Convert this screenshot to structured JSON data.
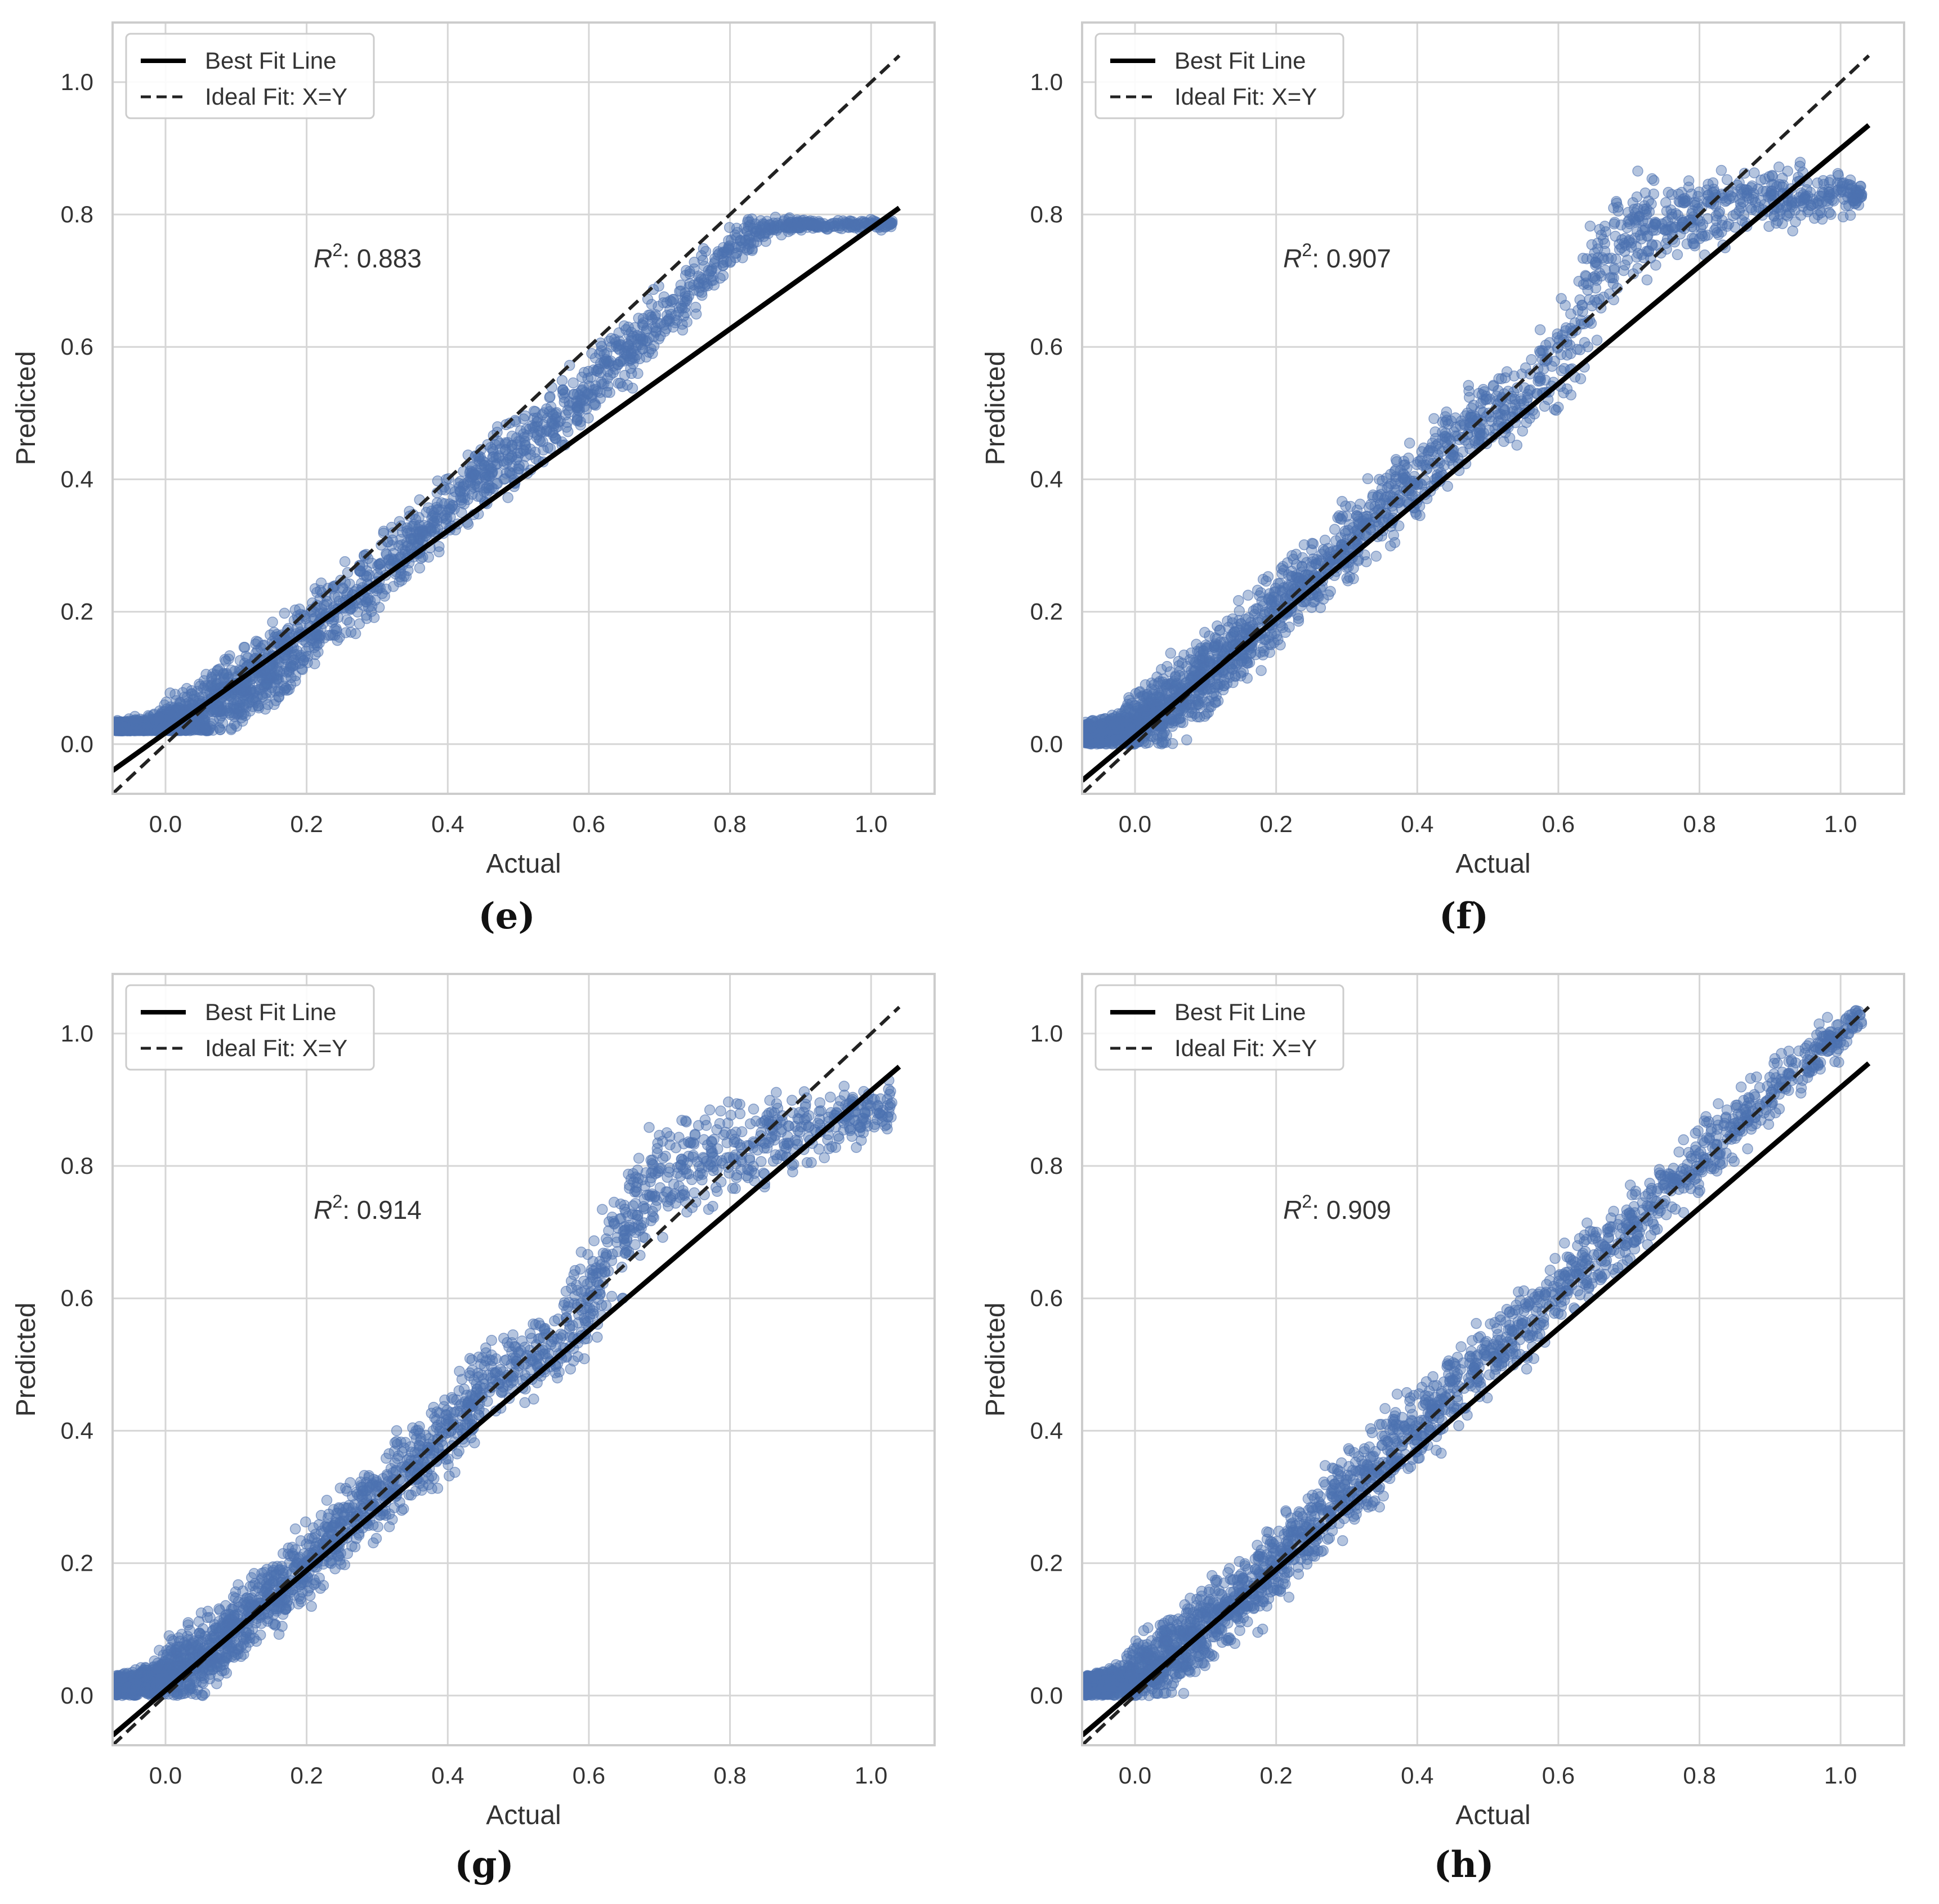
{
  "figure": {
    "panels": [
      {
        "caption": "(e)"
      },
      {
        "caption": "(f)"
      },
      {
        "caption": "(g)"
      },
      {
        "caption": "(h)"
      }
    ]
  },
  "colors": {
    "scatter": "#4c72b0",
    "best_fit": "#000000",
    "ideal_fit": "#222222",
    "grid": "#d6d6d6",
    "frame": "#cccccc",
    "text": "#333333"
  },
  "chart_data": [
    {
      "type": "scatter",
      "panel": "e",
      "xlabel": "Actual",
      "ylabel": "Predicted",
      "xlim": [
        -0.075,
        1.09
      ],
      "ylim": [
        -0.075,
        1.09
      ],
      "xticks": [
        "0.0",
        "0.2",
        "0.4",
        "0.6",
        "0.8",
        "1.0"
      ],
      "yticks": [
        "0.0",
        "0.2",
        "0.4",
        "0.6",
        "0.8",
        "1.0"
      ],
      "legend": {
        "best_fit_label": "Best Fit Line",
        "ideal_fit_label": "Ideal Fit: X=Y",
        "position": "top-left"
      },
      "annotation": {
        "prefix": "R",
        "superscript": "2",
        "value": ": 0.883",
        "x": 0.21,
        "y": 0.72
      },
      "best_fit": {
        "x": [
          -0.075,
          1.04
        ],
        "y": [
          -0.04,
          0.81
        ]
      },
      "ideal_fit": {
        "x": [
          -0.075,
          1.04
        ],
        "y": [
          -0.075,
          1.04
        ]
      },
      "scatter_band": {
        "x": [
          -0.07,
          -0.02,
          0.0,
          0.05,
          0.1,
          0.15,
          0.2,
          0.25,
          0.3,
          0.35,
          0.4,
          0.45,
          0.5,
          0.55,
          0.6,
          0.65,
          0.7,
          0.75,
          0.8,
          0.85,
          0.9,
          0.95,
          1.0,
          1.03
        ],
        "center": [
          0.025,
          0.025,
          0.03,
          0.045,
          0.08,
          0.115,
          0.16,
          0.21,
          0.26,
          0.305,
          0.355,
          0.405,
          0.445,
          0.49,
          0.54,
          0.59,
          0.64,
          0.695,
          0.745,
          0.78,
          0.785,
          0.785,
          0.785,
          0.785
        ],
        "spread": [
          0.005,
          0.01,
          0.02,
          0.03,
          0.035,
          0.035,
          0.035,
          0.035,
          0.035,
          0.03,
          0.03,
          0.03,
          0.03,
          0.03,
          0.03,
          0.03,
          0.03,
          0.025,
          0.02,
          0.01,
          0.005,
          0.004,
          0.004,
          0.004
        ],
        "floor": 0.02
      }
    },
    {
      "type": "scatter",
      "panel": "f",
      "xlabel": "Actual",
      "ylabel": "Predicted",
      "xlim": [
        -0.075,
        1.09
      ],
      "ylim": [
        -0.075,
        1.09
      ],
      "xticks": [
        "0.0",
        "0.2",
        "0.4",
        "0.6",
        "0.8",
        "1.0"
      ],
      "yticks": [
        "0.0",
        "0.2",
        "0.4",
        "0.6",
        "0.8",
        "1.0"
      ],
      "legend": {
        "best_fit_label": "Best Fit Line",
        "ideal_fit_label": "Ideal Fit: X=Y",
        "position": "top-left"
      },
      "annotation": {
        "prefix": "R",
        "superscript": "2",
        "value": ": 0.907",
        "x": 0.21,
        "y": 0.72
      },
      "best_fit": {
        "x": [
          -0.075,
          1.04
        ],
        "y": [
          -0.055,
          0.935
        ]
      },
      "ideal_fit": {
        "x": [
          -0.075,
          1.04
        ],
        "y": [
          -0.075,
          1.04
        ]
      },
      "scatter_band": {
        "x": [
          -0.07,
          -0.02,
          0.0,
          0.05,
          0.1,
          0.15,
          0.2,
          0.25,
          0.3,
          0.35,
          0.4,
          0.45,
          0.5,
          0.55,
          0.6,
          0.65,
          0.7,
          0.75,
          0.8,
          0.85,
          0.9,
          0.95,
          1.0,
          1.03
        ],
        "center": [
          0.015,
          0.02,
          0.03,
          0.06,
          0.1,
          0.15,
          0.2,
          0.25,
          0.3,
          0.35,
          0.405,
          0.46,
          0.5,
          0.515,
          0.57,
          0.7,
          0.78,
          0.79,
          0.8,
          0.81,
          0.82,
          0.83,
          0.83,
          0.83
        ],
        "spread": [
          0.008,
          0.015,
          0.025,
          0.035,
          0.035,
          0.035,
          0.035,
          0.035,
          0.035,
          0.035,
          0.035,
          0.035,
          0.03,
          0.03,
          0.05,
          0.05,
          0.04,
          0.035,
          0.035,
          0.03,
          0.03,
          0.025,
          0.02,
          0.01
        ],
        "floor": 0.0
      }
    },
    {
      "type": "scatter",
      "panel": "g",
      "xlabel": "Actual",
      "ylabel": "Predicted",
      "xlim": [
        -0.075,
        1.09
      ],
      "ylim": [
        -0.075,
        1.09
      ],
      "xticks": [
        "0.0",
        "0.2",
        "0.4",
        "0.6",
        "0.8",
        "1.0"
      ],
      "yticks": [
        "0.0",
        "0.2",
        "0.4",
        "0.6",
        "0.8",
        "1.0"
      ],
      "legend": {
        "best_fit_label": "Best Fit Line",
        "ideal_fit_label": "Ideal Fit: X=Y",
        "position": "top-left"
      },
      "annotation": {
        "prefix": "R",
        "superscript": "2",
        "value": ": 0.914",
        "x": 0.21,
        "y": 0.72
      },
      "best_fit": {
        "x": [
          -0.075,
          1.04
        ],
        "y": [
          -0.06,
          0.95
        ]
      },
      "ideal_fit": {
        "x": [
          -0.075,
          1.04
        ],
        "y": [
          -0.075,
          1.04
        ]
      },
      "scatter_band": {
        "x": [
          -0.07,
          -0.02,
          0.0,
          0.05,
          0.1,
          0.15,
          0.2,
          0.25,
          0.3,
          0.35,
          0.4,
          0.45,
          0.5,
          0.55,
          0.6,
          0.65,
          0.7,
          0.75,
          0.8,
          0.85,
          0.9,
          0.95,
          1.0,
          1.03
        ],
        "center": [
          0.015,
          0.02,
          0.03,
          0.06,
          0.1,
          0.15,
          0.2,
          0.25,
          0.3,
          0.35,
          0.4,
          0.47,
          0.5,
          0.52,
          0.6,
          0.7,
          0.79,
          0.8,
          0.82,
          0.84,
          0.86,
          0.87,
          0.88,
          0.89
        ],
        "spread": [
          0.008,
          0.015,
          0.025,
          0.035,
          0.035,
          0.035,
          0.035,
          0.035,
          0.035,
          0.035,
          0.035,
          0.035,
          0.03,
          0.035,
          0.05,
          0.05,
          0.045,
          0.04,
          0.04,
          0.035,
          0.035,
          0.03,
          0.03,
          0.02
        ],
        "floor": 0.0
      }
    },
    {
      "type": "scatter",
      "panel": "h",
      "xlabel": "Actual",
      "ylabel": "Predicted",
      "xlim": [
        -0.075,
        1.09
      ],
      "ylim": [
        -0.075,
        1.09
      ],
      "xticks": [
        "0.0",
        "0.2",
        "0.4",
        "0.6",
        "0.8",
        "1.0"
      ],
      "yticks": [
        "0.0",
        "0.2",
        "0.4",
        "0.6",
        "0.8",
        "1.0"
      ],
      "legend": {
        "best_fit_label": "Best Fit Line",
        "ideal_fit_label": "Ideal Fit: X=Y",
        "position": "top-left"
      },
      "annotation": {
        "prefix": "R",
        "superscript": "2",
        "value": ": 0.909",
        "x": 0.21,
        "y": 0.72
      },
      "best_fit": {
        "x": [
          -0.075,
          1.04
        ],
        "y": [
          -0.06,
          0.955
        ]
      },
      "ideal_fit": {
        "x": [
          -0.075,
          1.04
        ],
        "y": [
          -0.075,
          1.04
        ]
      },
      "scatter_band": {
        "x": [
          -0.07,
          -0.02,
          0.0,
          0.05,
          0.1,
          0.15,
          0.2,
          0.25,
          0.3,
          0.35,
          0.4,
          0.45,
          0.5,
          0.55,
          0.6,
          0.65,
          0.7,
          0.75,
          0.8,
          0.85,
          0.9,
          0.95,
          1.0,
          1.03
        ],
        "center": [
          0.015,
          0.02,
          0.03,
          0.06,
          0.1,
          0.15,
          0.2,
          0.255,
          0.31,
          0.36,
          0.41,
          0.46,
          0.51,
          0.56,
          0.61,
          0.66,
          0.71,
          0.76,
          0.81,
          0.86,
          0.91,
          0.955,
          1.0,
          1.02
        ],
        "spread": [
          0.008,
          0.015,
          0.025,
          0.035,
          0.035,
          0.035,
          0.035,
          0.035,
          0.035,
          0.035,
          0.035,
          0.035,
          0.035,
          0.035,
          0.035,
          0.035,
          0.035,
          0.03,
          0.03,
          0.03,
          0.03,
          0.025,
          0.02,
          0.01
        ],
        "floor": 0.0
      }
    }
  ]
}
